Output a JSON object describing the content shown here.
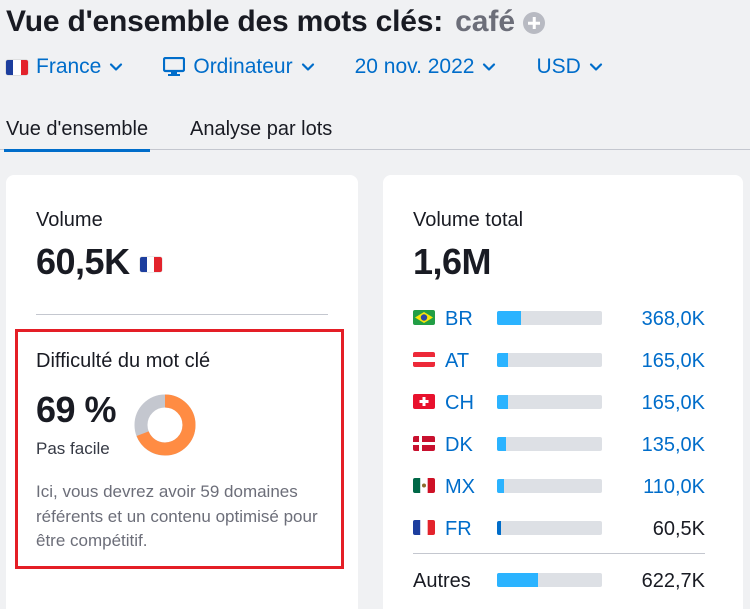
{
  "header": {
    "title": "Vue d'ensemble des mots clés:",
    "keyword": "café"
  },
  "filters": {
    "country": "France",
    "device": "Ordinateur",
    "date": "20 nov. 2022",
    "currency": "USD"
  },
  "tabs": [
    {
      "label": "Vue d'ensemble",
      "active": true
    },
    {
      "label": "Analyse par lots",
      "active": false
    }
  ],
  "volume_card": {
    "label": "Volume",
    "value": "60,5K"
  },
  "difficulty": {
    "label": "Difficulté du mot clé",
    "value": "69 %",
    "level": "Pas facile",
    "percent": 69,
    "description": "Ici, vous devrez avoir 59 domaines référents et un contenu optimisé pour être compétitif.",
    "colors": {
      "fill": "#ff8c43",
      "track": "#c4c7cf"
    }
  },
  "total_card": {
    "label": "Volume total",
    "value": "1,6M",
    "countries": [
      {
        "code": "BR",
        "value": "368,0K",
        "share": 0.23,
        "flag": "br"
      },
      {
        "code": "AT",
        "value": "165,0K",
        "share": 0.1,
        "flag": "at"
      },
      {
        "code": "CH",
        "value": "165,0K",
        "share": 0.1,
        "flag": "ch"
      },
      {
        "code": "DK",
        "value": "135,0K",
        "share": 0.085,
        "flag": "dk"
      },
      {
        "code": "MX",
        "value": "110,0K",
        "share": 0.07,
        "flag": "mx"
      },
      {
        "code": "FR",
        "value": "60,5K",
        "share": 0.04,
        "flag": "fr"
      }
    ],
    "others": {
      "label": "Autres",
      "value": "622,7K",
      "share": 0.39
    }
  },
  "colors": {
    "accent": "#006dca",
    "bar": "#2bb3ff",
    "highlight_border": "#e41e26"
  }
}
